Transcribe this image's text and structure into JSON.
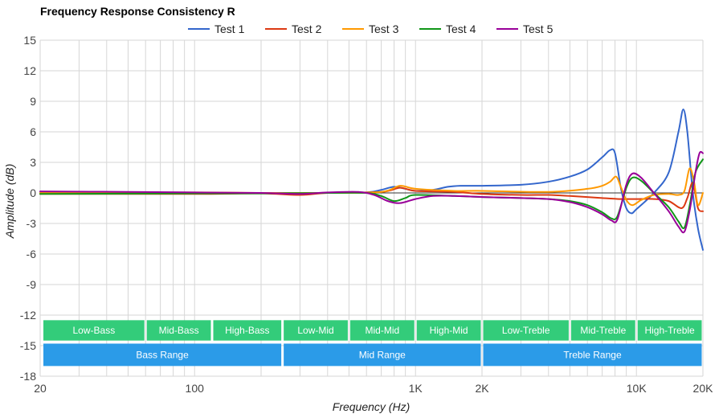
{
  "chart_data": {
    "type": "line",
    "title": "Frequency Response Consistency R",
    "xlabel": "Frequency (Hz)",
    "ylabel": "Amplitude (dB)",
    "x_scale": "log",
    "xlim": [
      20,
      20000
    ],
    "ylim": [
      -18,
      15
    ],
    "yticks": [
      15,
      12,
      9,
      6,
      3,
      0,
      -3,
      -6,
      -9,
      -12,
      -15,
      -18
    ],
    "xticks": [
      {
        "value": 20,
        "label": "20"
      },
      {
        "value": 100,
        "label": "100"
      },
      {
        "value": 1000,
        "label": "1K"
      },
      {
        "value": 2000,
        "label": "2K"
      },
      {
        "value": 10000,
        "label": "10K"
      },
      {
        "value": 20000,
        "label": "20K"
      }
    ],
    "grid": true,
    "legend_position": "top",
    "series": [
      {
        "name": "Test 1",
        "color": "#3366cc",
        "points": [
          [
            20,
            0.1
          ],
          [
            50,
            0.05
          ],
          [
            100,
            0.0
          ],
          [
            200,
            0.0
          ],
          [
            400,
            0.0
          ],
          [
            600,
            0.05
          ],
          [
            700,
            0.3
          ],
          [
            800,
            0.6
          ],
          [
            900,
            0.4
          ],
          [
            1000,
            0.2
          ],
          [
            1200,
            0.3
          ],
          [
            1400,
            0.6
          ],
          [
            1600,
            0.7
          ],
          [
            2000,
            0.7
          ],
          [
            3000,
            0.8
          ],
          [
            4000,
            1.1
          ],
          [
            5000,
            1.6
          ],
          [
            6000,
            2.3
          ],
          [
            7000,
            3.5
          ],
          [
            7600,
            4.2
          ],
          [
            8000,
            3.9
          ],
          [
            8500,
            0.5
          ],
          [
            9000,
            -1.5
          ],
          [
            9500,
            -2.0
          ],
          [
            10000,
            -1.6
          ],
          [
            12000,
            0.0
          ],
          [
            14000,
            2.0
          ],
          [
            15500,
            6.0
          ],
          [
            16300,
            8.2
          ],
          [
            17000,
            6.0
          ],
          [
            18000,
            0.0
          ],
          [
            19000,
            -3.5
          ],
          [
            20000,
            -5.6
          ]
        ]
      },
      {
        "name": "Test 2",
        "color": "#dc3912",
        "points": [
          [
            20,
            -0.1
          ],
          [
            100,
            -0.1
          ],
          [
            200,
            -0.05
          ],
          [
            300,
            -0.2
          ],
          [
            400,
            0.0
          ],
          [
            700,
            0.1
          ],
          [
            850,
            0.5
          ],
          [
            1000,
            0.2
          ],
          [
            1500,
            0.1
          ],
          [
            2000,
            -0.1
          ],
          [
            3000,
            -0.2
          ],
          [
            4000,
            -0.2
          ],
          [
            5000,
            -0.3
          ],
          [
            7000,
            -0.5
          ],
          [
            8500,
            -0.6
          ],
          [
            10000,
            -0.6
          ],
          [
            12000,
            -0.6
          ],
          [
            14000,
            -0.8
          ],
          [
            16000,
            -1.5
          ],
          [
            17000,
            -0.5
          ],
          [
            18000,
            1.0
          ],
          [
            19000,
            -1.5
          ],
          [
            20000,
            -1.8
          ]
        ]
      },
      {
        "name": "Test 3",
        "color": "#ff9900",
        "points": [
          [
            20,
            0.0
          ],
          [
            100,
            0.05
          ],
          [
            200,
            0.0
          ],
          [
            400,
            0.0
          ],
          [
            700,
            0.1
          ],
          [
            850,
            0.7
          ],
          [
            1000,
            0.4
          ],
          [
            1500,
            0.2
          ],
          [
            2000,
            0.2
          ],
          [
            4000,
            0.1
          ],
          [
            6000,
            0.4
          ],
          [
            7000,
            0.7
          ],
          [
            7600,
            1.1
          ],
          [
            8100,
            1.6
          ],
          [
            8500,
            0.6
          ],
          [
            9000,
            -0.7
          ],
          [
            9600,
            -1.2
          ],
          [
            10500,
            -0.7
          ],
          [
            12000,
            -0.2
          ],
          [
            14000,
            -0.1
          ],
          [
            15500,
            -0.2
          ],
          [
            16500,
            0.2
          ],
          [
            17400,
            2.4
          ],
          [
            18200,
            1.2
          ],
          [
            19000,
            -1.2
          ],
          [
            20000,
            0.0
          ]
        ]
      },
      {
        "name": "Test 4",
        "color": "#109618",
        "points": [
          [
            20,
            -0.1
          ],
          [
            100,
            -0.05
          ],
          [
            200,
            -0.05
          ],
          [
            400,
            0.0
          ],
          [
            600,
            0.0
          ],
          [
            700,
            -0.3
          ],
          [
            800,
            -0.8
          ],
          [
            900,
            -0.5
          ],
          [
            1000,
            -0.2
          ],
          [
            1500,
            -0.3
          ],
          [
            2000,
            -0.4
          ],
          [
            3000,
            -0.5
          ],
          [
            4000,
            -0.6
          ],
          [
            5000,
            -0.8
          ],
          [
            6000,
            -1.2
          ],
          [
            7000,
            -1.9
          ],
          [
            7700,
            -2.5
          ],
          [
            8200,
            -2.3
          ],
          [
            9000,
            0.5
          ],
          [
            9600,
            1.5
          ],
          [
            10500,
            1.2
          ],
          [
            12000,
            0.0
          ],
          [
            14000,
            -1.4
          ],
          [
            15500,
            -2.8
          ],
          [
            16500,
            -3.4
          ],
          [
            17500,
            -1.0
          ],
          [
            18500,
            2.0
          ],
          [
            20000,
            3.3
          ]
        ]
      },
      {
        "name": "Test 5",
        "color": "#990099",
        "points": [
          [
            20,
            0.15
          ],
          [
            50,
            0.1
          ],
          [
            100,
            0.05
          ],
          [
            200,
            0.0
          ],
          [
            300,
            -0.1
          ],
          [
            400,
            0.05
          ],
          [
            550,
            0.1
          ],
          [
            650,
            -0.2
          ],
          [
            750,
            -0.8
          ],
          [
            850,
            -1.0
          ],
          [
            1000,
            -0.6
          ],
          [
            1200,
            -0.3
          ],
          [
            1500,
            -0.3
          ],
          [
            2000,
            -0.4
          ],
          [
            3000,
            -0.5
          ],
          [
            4000,
            -0.6
          ],
          [
            5000,
            -0.9
          ],
          [
            6000,
            -1.4
          ],
          [
            7000,
            -2.1
          ],
          [
            7700,
            -2.7
          ],
          [
            8200,
            -2.6
          ],
          [
            9000,
            0.8
          ],
          [
            9600,
            1.9
          ],
          [
            10500,
            1.5
          ],
          [
            12000,
            0.0
          ],
          [
            14000,
            -1.8
          ],
          [
            15500,
            -3.3
          ],
          [
            16500,
            -3.8
          ],
          [
            17500,
            -1.5
          ],
          [
            18500,
            2.0
          ],
          [
            19300,
            3.9
          ],
          [
            20000,
            3.9
          ]
        ]
      }
    ],
    "bands": {
      "top": [
        {
          "label": "Low-Bass",
          "from": 20,
          "to": 60
        },
        {
          "label": "Mid-Bass",
          "from": 60,
          "to": 120
        },
        {
          "label": "High-Bass",
          "from": 120,
          "to": 250
        },
        {
          "label": "Low-Mid",
          "from": 250,
          "to": 500
        },
        {
          "label": "Mid-Mid",
          "from": 500,
          "to": 1000
        },
        {
          "label": "High-Mid",
          "from": 1000,
          "to": 2000
        },
        {
          "label": "Low-Treble",
          "from": 2000,
          "to": 5000
        },
        {
          "label": "Mid-Treble",
          "from": 5000,
          "to": 10000
        },
        {
          "label": "High-Treble",
          "from": 10000,
          "to": 20000
        }
      ],
      "bottom": [
        {
          "label": "Bass Range",
          "from": 20,
          "to": 250
        },
        {
          "label": "Mid Range",
          "from": 250,
          "to": 2000
        },
        {
          "label": "Treble Range",
          "from": 2000,
          "to": 20000
        }
      ],
      "top_color": "#33cc7a",
      "bottom_color": "#2b9be8"
    }
  }
}
